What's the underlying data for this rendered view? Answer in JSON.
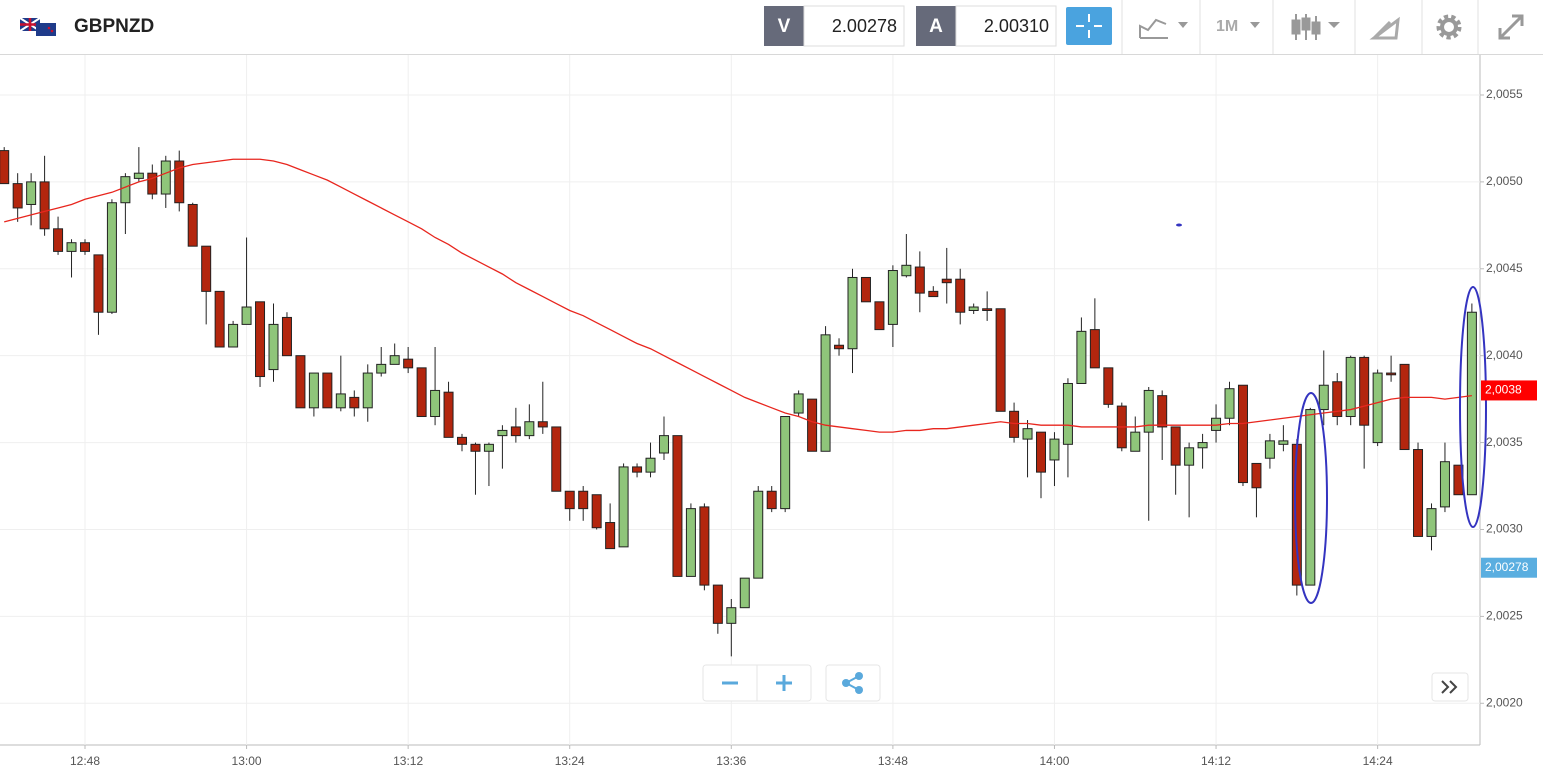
{
  "header": {
    "symbol": "GBPNZD",
    "bid_label": "V",
    "bid": "2.00278",
    "ask_label": "A",
    "ask": "2.00310",
    "interval": "1M"
  },
  "chart_data": {
    "type": "candlestick",
    "categories": [
      null,
      null,
      null,
      null,
      null,
      null,
      "12:48",
      null,
      null,
      null,
      null,
      null,
      null,
      null,
      null,
      null,
      null,
      null,
      "13:00",
      null,
      null,
      null,
      null,
      null,
      null,
      null,
      null,
      null,
      null,
      null,
      "13:12",
      null,
      null,
      null,
      null,
      null,
      null,
      null,
      null,
      null,
      null,
      null,
      "13:24",
      null,
      null,
      null,
      null,
      null,
      null,
      null,
      null,
      null,
      null,
      null,
      "13:36",
      null,
      null,
      null,
      null,
      null,
      null,
      null,
      null,
      null,
      null,
      null,
      "13:48",
      null,
      null,
      null,
      null,
      null,
      null,
      null,
      null,
      null,
      null,
      null,
      "14:00",
      null,
      null,
      null,
      null,
      null,
      null,
      null,
      null,
      null,
      null,
      null,
      "14:12",
      null,
      null,
      null,
      null,
      null,
      null,
      null,
      null,
      null,
      null,
      null,
      "14:24",
      null,
      null,
      null,
      null,
      null,
      null,
      null
    ],
    "open": [
      2.00518,
      2.00499,
      2.00487,
      2.005,
      2.00473,
      2.0046,
      2.00465,
      2.00458,
      2.00425,
      2.00488,
      2.00502,
      2.00505,
      2.00493,
      2.00512,
      2.00487,
      2.00463,
      2.00437,
      2.00405,
      2.00418,
      2.00431,
      2.00392,
      2.00422,
      2.004,
      2.0037,
      2.0039,
      2.0037,
      2.00376,
      2.0037,
      2.0039,
      2.00395,
      2.00398,
      2.00393,
      2.00365,
      2.00379,
      2.00353,
      2.00349,
      2.00345,
      2.00354,
      2.00359,
      2.00354,
      2.00362,
      2.00359,
      2.00322,
      2.00322,
      2.0032,
      2.00304,
      2.0029,
      2.00336,
      2.00333,
      2.00344,
      2.00354,
      2.00273,
      2.00313,
      2.00268,
      2.00246,
      2.00255,
      2.00272,
      2.00322,
      2.00312,
      2.00367,
      2.00375,
      2.00345,
      2.00406,
      2.00404,
      2.00445,
      2.00431,
      2.00418,
      2.00446,
      2.00451,
      2.00437,
      2.00444,
      2.00444,
      2.00426,
      2.00427,
      2.00427,
      2.00368,
      2.00352,
      2.00356,
      2.0034,
      2.00349,
      2.00384,
      2.00415,
      2.00393,
      2.00371,
      2.00345,
      2.00356,
      2.00377,
      2.00359,
      2.00337,
      2.00347,
      2.00357,
      2.00364,
      2.00383,
      2.00338,
      2.00341,
      2.00349,
      2.00349,
      2.00268,
      2.00369,
      2.00385,
      2.00365,
      2.00399,
      2.0035,
      2.0039,
      2.00395,
      2.00346,
      2.00296,
      2.00313,
      2.00337,
      2.0032
    ],
    "close": [
      2.00499,
      2.00485,
      2.005,
      2.00473,
      2.0046,
      2.00465,
      2.0046,
      2.00425,
      2.00488,
      2.00503,
      2.00505,
      2.00493,
      2.00512,
      2.00488,
      2.00463,
      2.00437,
      2.00405,
      2.00418,
      2.00428,
      2.00388,
      2.00418,
      2.004,
      2.0037,
      2.0039,
      2.0037,
      2.00378,
      2.0037,
      2.0039,
      2.00395,
      2.004,
      2.00393,
      2.00365,
      2.0038,
      2.00353,
      2.00349,
      2.00345,
      2.00349,
      2.00357,
      2.00354,
      2.00362,
      2.00359,
      2.00322,
      2.00312,
      2.00312,
      2.00301,
      2.00289,
      2.00336,
      2.00333,
      2.00341,
      2.00354,
      2.00273,
      2.00312,
      2.00268,
      2.00246,
      2.00255,
      2.00272,
      2.00322,
      2.00312,
      2.00365,
      2.00378,
      2.00345,
      2.00412,
      2.00404,
      2.00445,
      2.00431,
      2.00415,
      2.00449,
      2.00452,
      2.00436,
      2.00434,
      2.00442,
      2.00425,
      2.00428,
      2.00426,
      2.00368,
      2.00353,
      2.00358,
      2.00333,
      2.00352,
      2.00384,
      2.00414,
      2.00393,
      2.00372,
      2.00347,
      2.00356,
      2.0038,
      2.00359,
      2.00337,
      2.00347,
      2.0035,
      2.00364,
      2.00381,
      2.00327,
      2.00324,
      2.00351,
      2.00351,
      2.00268,
      2.00369,
      2.00383,
      2.00365,
      2.00399,
      2.0036,
      2.0039,
      2.00389,
      2.00346,
      2.00296,
      2.00312,
      2.00339,
      2.0032,
      2.00425
    ],
    "high": [
      2.0052,
      2.00505,
      2.00505,
      2.00515,
      2.0048,
      2.00467,
      2.00467,
      2.00458,
      2.0049,
      2.00505,
      2.0052,
      2.0051,
      2.00515,
      2.00518,
      2.00488,
      2.00463,
      2.00437,
      2.0042,
      2.00468,
      2.00431,
      2.0043,
      2.00425,
      2.004,
      2.0039,
      2.0039,
      2.004,
      2.0038,
      2.00395,
      2.00405,
      2.00407,
      2.00405,
      2.00393,
      2.00405,
      2.00385,
      2.00355,
      2.0035,
      2.0035,
      2.0036,
      2.0037,
      2.00372,
      2.00385,
      2.00359,
      2.00322,
      2.00325,
      2.0032,
      2.00315,
      2.00338,
      2.00338,
      2.0035,
      2.00365,
      2.00354,
      2.00315,
      2.00315,
      2.00268,
      2.0026,
      2.00272,
      2.00325,
      2.00325,
      2.00365,
      2.0038,
      2.00375,
      2.00417,
      2.0041,
      2.0045,
      2.00445,
      2.00431,
      2.00452,
      2.0047,
      2.0046,
      2.0044,
      2.00462,
      2.0045,
      2.0043,
      2.00437,
      2.00427,
      2.00373,
      2.00363,
      2.00356,
      2.00356,
      2.00387,
      2.00422,
      2.00433,
      2.00393,
      2.00373,
      2.00365,
      2.00382,
      2.0038,
      2.00359,
      2.0035,
      2.00355,
      2.00372,
      2.00385,
      2.00383,
      2.00338,
      2.00355,
      2.0036,
      2.00352,
      2.0037,
      2.00403,
      2.0039,
      2.004,
      2.004,
      2.00392,
      2.004,
      2.00395,
      2.0035,
      2.00315,
      2.0035,
      2.00337,
      2.0043
    ],
    "low": [
      2.005,
      2.00477,
      2.00475,
      2.00469,
      2.00458,
      2.00445,
      2.00458,
      2.00412,
      2.00424,
      2.0047,
      2.005,
      2.0049,
      2.00485,
      2.00483,
      2.00463,
      2.00418,
      2.00405,
      2.00405,
      2.00418,
      2.00382,
      2.00385,
      2.004,
      2.0037,
      2.00365,
      2.0037,
      2.00368,
      2.00365,
      2.00362,
      2.00388,
      2.00395,
      2.0039,
      2.00365,
      2.0036,
      2.00353,
      2.00345,
      2.0032,
      2.00325,
      2.00335,
      2.0035,
      2.00352,
      2.00355,
      2.00322,
      2.00305,
      2.00305,
      2.003,
      2.00289,
      2.0029,
      2.0033,
      2.0033,
      2.0034,
      2.00273,
      2.00273,
      2.00265,
      2.0024,
      2.00227,
      2.00255,
      2.00272,
      2.0031,
      2.0031,
      2.00365,
      2.00345,
      2.00345,
      2.004,
      2.0039,
      2.00431,
      2.00415,
      2.00405,
      2.00445,
      2.00425,
      2.00434,
      2.0043,
      2.00418,
      2.00424,
      2.0042,
      2.00368,
      2.0035,
      2.0033,
      2.00318,
      2.00325,
      2.0033,
      2.00384,
      2.00393,
      2.0037,
      2.00345,
      2.00345,
      2.00305,
      2.0034,
      2.0032,
      2.00307,
      2.00335,
      2.0035,
      2.0036,
      2.00325,
      2.00307,
      2.00335,
      2.00345,
      2.00262,
      2.00268,
      2.0036,
      2.0036,
      2.0036,
      2.00335,
      2.00348,
      2.00385,
      2.00346,
      2.00296,
      2.00288,
      2.0031,
      2.0032,
      2.0032
    ],
    "up_color": "#8fc57a",
    "down_color": "#b3260e",
    "line": {
      "color": "#e8261e",
      "values": [
        2.00477,
        2.00479,
        2.00481,
        2.00483,
        2.00485,
        2.00487,
        2.0049,
        2.00492,
        2.00494,
        2.00497,
        2.005,
        2.00502,
        2.00505,
        2.00508,
        2.0051,
        2.00511,
        2.00512,
        2.00513,
        2.00513,
        2.00513,
        2.00512,
        2.0051,
        2.00507,
        2.00504,
        2.00501,
        2.00497,
        2.00493,
        2.00489,
        2.00485,
        2.00481,
        2.00477,
        2.00473,
        2.00468,
        2.00464,
        2.00459,
        2.00455,
        2.00451,
        2.00447,
        2.00442,
        2.00438,
        2.00434,
        2.0043,
        2.00426,
        2.00423,
        2.00419,
        2.00415,
        2.00411,
        2.00407,
        2.00404,
        2.004,
        2.00396,
        2.00392,
        2.00388,
        2.00384,
        2.0038,
        2.00376,
        2.00373,
        2.0037,
        2.00367,
        2.00365,
        2.00362,
        2.0036,
        2.00359,
        2.00358,
        2.00357,
        2.00356,
        2.00356,
        2.00357,
        2.00357,
        2.00358,
        2.00358,
        2.00359,
        2.0036,
        2.00361,
        2.00362,
        2.00361,
        2.00361,
        2.0036,
        2.0036,
        2.0036,
        2.00359,
        2.00359,
        2.00359,
        2.00359,
        2.00359,
        2.0036,
        2.0036,
        2.0036,
        2.0036,
        2.0036,
        2.0036,
        2.00361,
        2.00361,
        2.00362,
        2.00363,
        2.00364,
        2.00365,
        2.00366,
        2.00367,
        2.00368,
        2.00369,
        2.00371,
        2.00373,
        2.00375,
        2.00376,
        2.00376,
        2.00376,
        2.00375,
        2.00376,
        2.00377
      ]
    },
    "ylim": [
      2.00176,
      2.00573
    ],
    "yticks": [
      {
        "value": 2.002,
        "label": "2,0020"
      },
      {
        "value": 2.0025,
        "label": "2,0025"
      },
      {
        "value": 2.003,
        "label": "2,0030"
      },
      {
        "value": 2.0035,
        "label": "2,0035"
      },
      {
        "value": 2.004,
        "label": "2,0040"
      },
      {
        "value": 2.0045,
        "label": "2,0045"
      },
      {
        "value": 2.005,
        "label": "2,0050"
      },
      {
        "value": 2.0055,
        "label": "2,0055"
      }
    ],
    "price_labels": [
      {
        "value": 2.0038,
        "label": "2,0038",
        "color": "#ff0000"
      },
      {
        "value": 2.00278,
        "label": "2,00278",
        "color": "#5aaee0"
      }
    ],
    "grid": true
  }
}
